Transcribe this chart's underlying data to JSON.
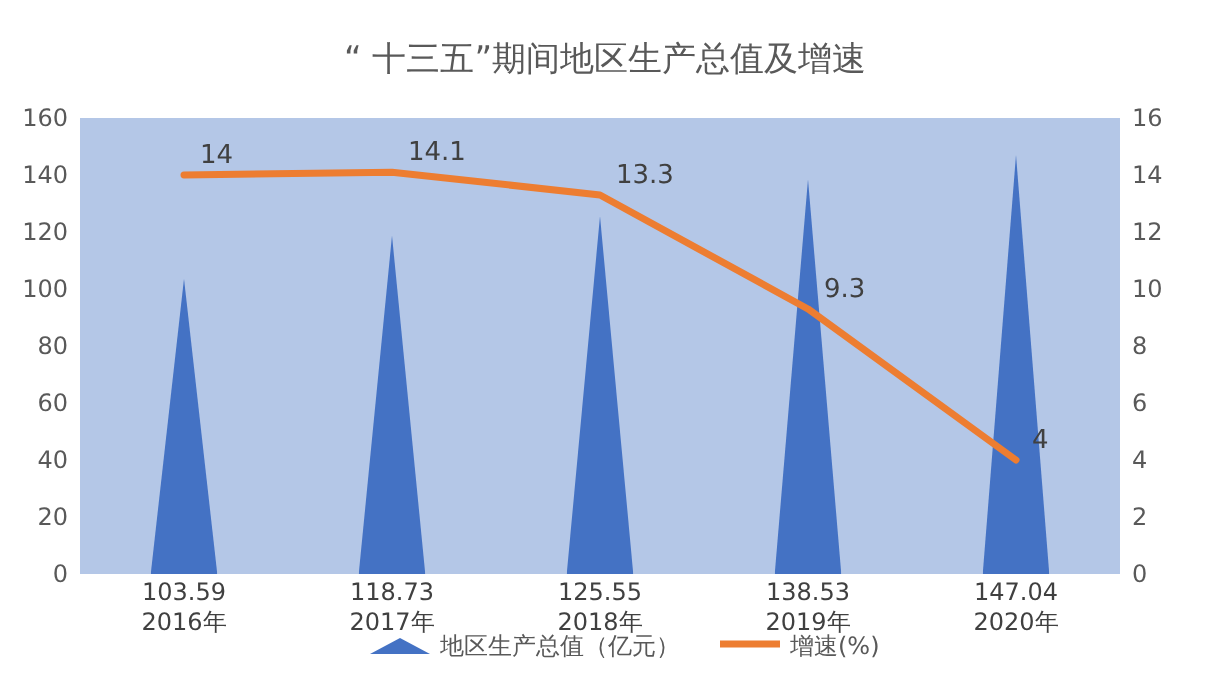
{
  "chart_data": {
    "type": "bar",
    "title": "“ 十三五”期间地区生产总值及增速",
    "categories": [
      "2016年",
      "2017年",
      "2018年",
      "2019年",
      "2020年"
    ],
    "series": [
      {
        "name": "地区生产总值（亿元）",
        "color": "#4472c4",
        "values": [
          103.59,
          118.73,
          125.55,
          138.53,
          147.04
        ]
      },
      {
        "name": "增速(%)",
        "type": "line",
        "axis": "y2",
        "color": "#ed7d31",
        "values": [
          14,
          14.1,
          13.3,
          9.3,
          4
        ]
      }
    ],
    "ylim": [
      0,
      160
    ],
    "yticks": [
      0,
      20,
      40,
      60,
      80,
      100,
      120,
      140,
      160
    ],
    "y2lim": [
      0,
      16
    ],
    "y2ticks": [
      0,
      2,
      4,
      6,
      8,
      10,
      12,
      14,
      16
    ],
    "data_labels": true,
    "legend": "bottom"
  }
}
